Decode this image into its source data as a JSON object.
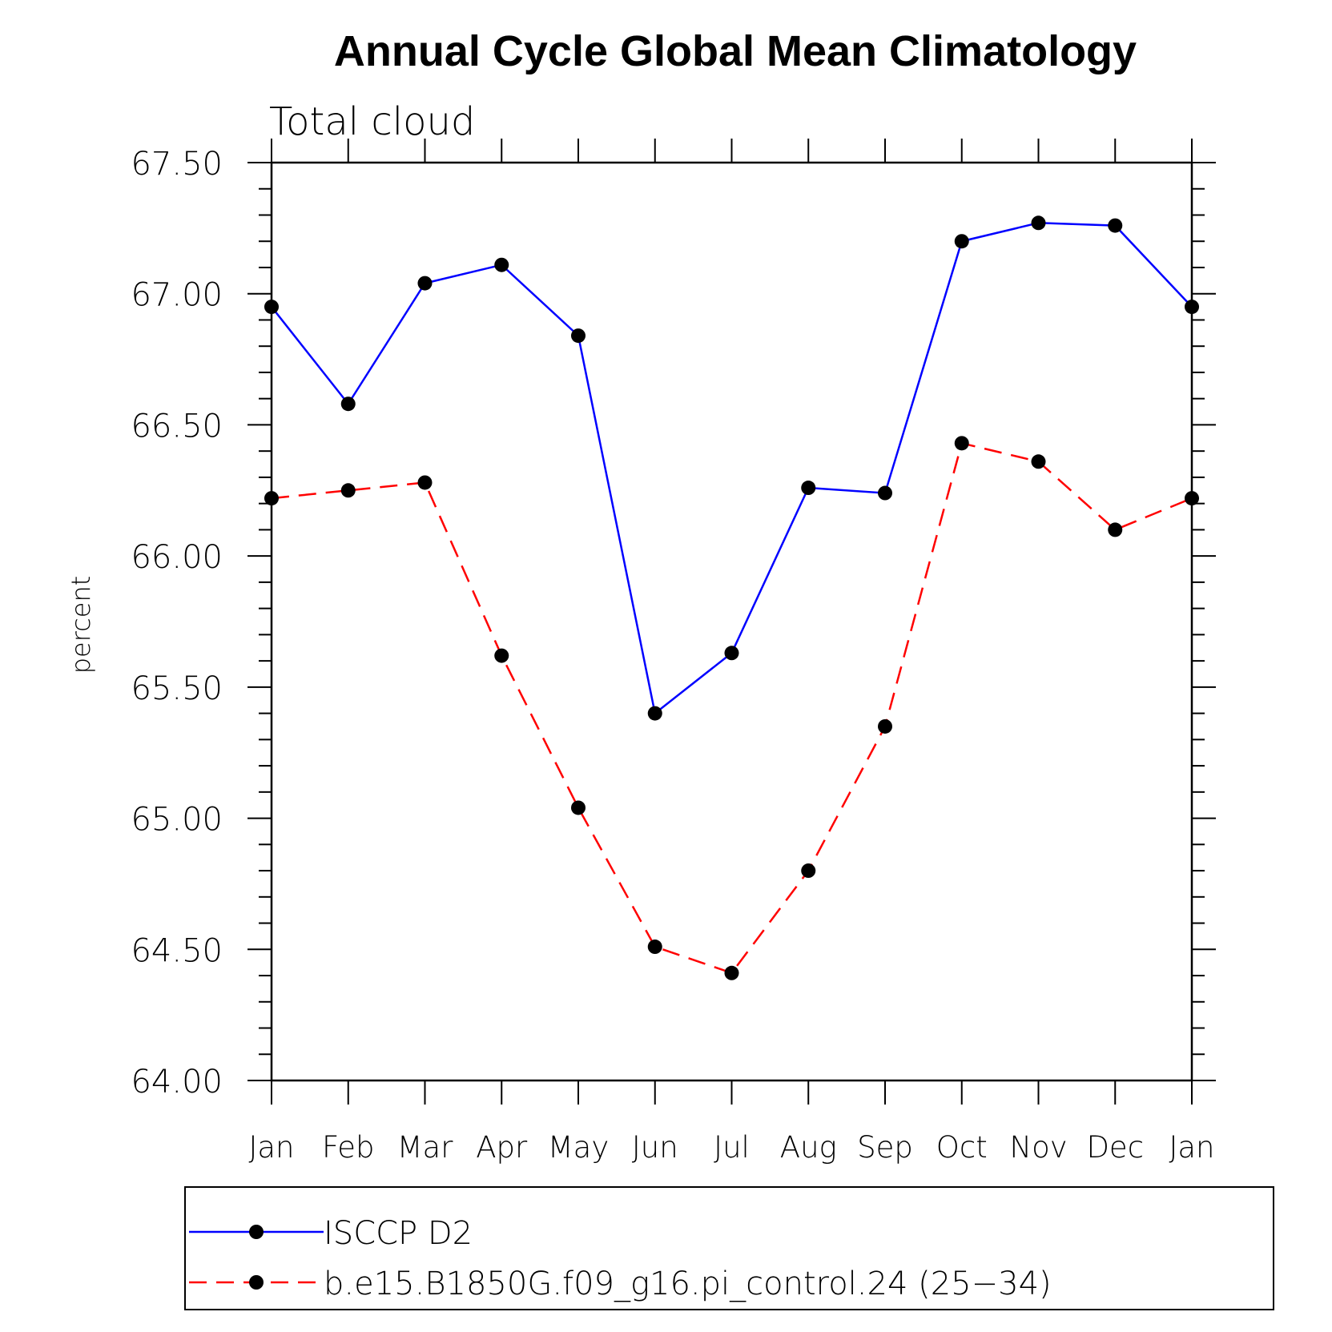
{
  "chart_data": {
    "type": "line",
    "title": "Annual Cycle Global Mean Climatology",
    "subtitle": "Total cloud",
    "ylabel": "percent",
    "xlabel": "",
    "categories": [
      "Jan",
      "Feb",
      "Mar",
      "Apr",
      "May",
      "Jun",
      "Jul",
      "Aug",
      "Sep",
      "Oct",
      "Nov",
      "Dec",
      "Jan"
    ],
    "ylim": [
      64.0,
      67.5
    ],
    "yticks": [
      "64.00",
      "64.50",
      "65.00",
      "65.50",
      "66.00",
      "66.50",
      "67.00",
      "67.50"
    ],
    "series": [
      {
        "name": "ISCCP D2",
        "color": "#0000ff",
        "dashed": false,
        "values": [
          66.95,
          66.58,
          67.04,
          67.11,
          66.84,
          65.4,
          65.63,
          66.26,
          66.24,
          67.2,
          67.27,
          67.26,
          66.95
        ]
      },
      {
        "name": "b.e15.B1850G.f09_g16.pi_control.24 (25−34)",
        "color": "#ff0000",
        "dashed": true,
        "values": [
          66.22,
          66.25,
          66.28,
          65.62,
          65.04,
          64.51,
          64.41,
          64.8,
          65.35,
          66.43,
          66.36,
          66.1,
          66.22
        ]
      }
    ],
    "legend": "bottom"
  }
}
